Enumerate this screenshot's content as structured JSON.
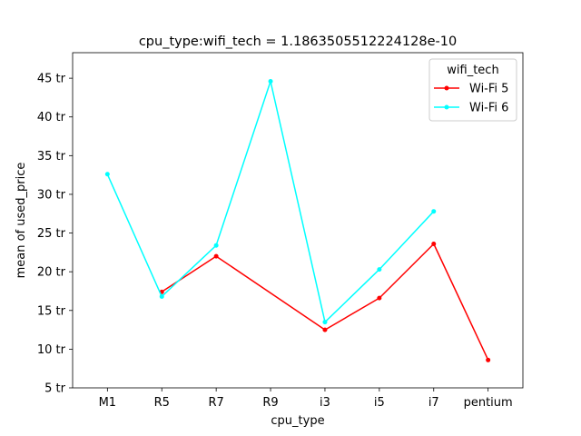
{
  "chart_data": {
    "type": "line",
    "title": "cpu_type:wifi_tech = 1.1863505512224128e-10",
    "xlabel": "cpu_type",
    "ylabel": "mean of used_price",
    "categories": [
      "M1",
      "R5",
      "R7",
      "R9",
      "i3",
      "i5",
      "i7",
      "pentium"
    ],
    "y_ticks": [
      5,
      10,
      15,
      20,
      25,
      30,
      35,
      40,
      45
    ],
    "y_tick_suffix": " tr",
    "ylim": [
      5,
      48.3
    ],
    "grid": false,
    "legend": {
      "title": "wifi_tech",
      "placement": "top-right"
    },
    "series": [
      {
        "name": "Wi-Fi 5",
        "color": "#ff0000",
        "values": [
          null,
          17.4,
          22.0,
          null,
          12.5,
          16.6,
          23.6,
          8.6
        ]
      },
      {
        "name": "Wi-Fi 6",
        "color": "#00ffff",
        "values": [
          32.6,
          16.8,
          23.4,
          44.6,
          13.5,
          20.3,
          27.8,
          null
        ]
      }
    ]
  }
}
